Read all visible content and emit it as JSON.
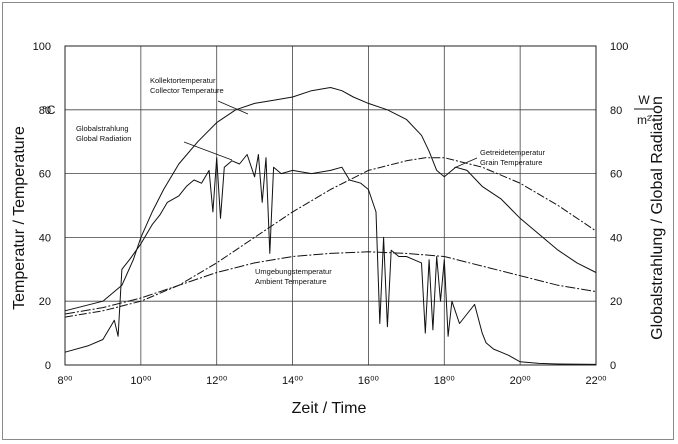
{
  "chart_data": {
    "type": "line",
    "xlabel": "Zeit / Time",
    "ylabel_left": "Temperatur / Temperature",
    "ylabel_right": "Globalstrahlung / Global Radiation",
    "unit_left": "°C",
    "unit_right_top": "W",
    "unit_right_bottom": "m²",
    "xlim": [
      8,
      22
    ],
    "ylim": [
      0,
      100
    ],
    "ylim_right": [
      0,
      100
    ],
    "grid": true,
    "x_ticks": [
      {
        "value": 8,
        "label": "8⁰⁰"
      },
      {
        "value": 10,
        "label": "10⁰⁰"
      },
      {
        "value": 12,
        "label": "12⁰⁰"
      },
      {
        "value": 14,
        "label": "14⁰⁰"
      },
      {
        "value": 16,
        "label": "16⁰⁰"
      },
      {
        "value": 18,
        "label": "18⁰⁰"
      },
      {
        "value": 20,
        "label": "20⁰⁰"
      },
      {
        "value": 22,
        "label": "22⁰⁰"
      }
    ],
    "y_ticks": [
      0,
      20,
      40,
      60,
      80,
      100
    ],
    "y_ticks_right": [
      0,
      20,
      40,
      60,
      80,
      100
    ],
    "series": [
      {
        "name": "Kollektortemperatur Collector Temperature",
        "label_lines": [
          "Kollektortemperatur",
          "Collector Temperature"
        ],
        "points": [
          [
            8,
            17
          ],
          [
            9,
            20
          ],
          [
            9.5,
            25
          ],
          [
            9.8,
            33
          ],
          [
            10,
            40
          ],
          [
            10.3,
            48
          ],
          [
            10.6,
            55
          ],
          [
            11,
            63
          ],
          [
            11.5,
            70
          ],
          [
            12,
            76
          ],
          [
            12.5,
            80
          ],
          [
            13,
            82
          ],
          [
            13.5,
            83
          ],
          [
            14,
            84
          ],
          [
            14.5,
            86
          ],
          [
            15,
            87
          ],
          [
            15.3,
            86
          ],
          [
            15.6,
            84
          ],
          [
            16,
            82
          ],
          [
            16.5,
            80
          ],
          [
            17,
            77
          ],
          [
            17.4,
            72
          ],
          [
            17.6,
            67
          ],
          [
            17.8,
            61
          ],
          [
            18,
            59
          ],
          [
            18.3,
            62
          ],
          [
            18.6,
            61
          ],
          [
            19,
            56
          ],
          [
            19.5,
            52
          ],
          [
            20,
            46
          ],
          [
            20.5,
            41
          ],
          [
            21,
            36
          ],
          [
            21.5,
            32
          ],
          [
            22,
            29
          ]
        ]
      },
      {
        "name": "Globalstrahlung Global Radiation",
        "label_lines": [
          "Globalstrahlung",
          "Global Radiation"
        ],
        "points": [
          [
            8,
            4
          ],
          [
            8.6,
            6
          ],
          [
            9,
            8
          ],
          [
            9.2,
            12
          ],
          [
            9.3,
            14
          ],
          [
            9.4,
            9
          ],
          [
            9.5,
            30
          ],
          [
            9.7,
            33
          ],
          [
            10,
            38
          ],
          [
            10.3,
            44
          ],
          [
            10.5,
            47
          ],
          [
            10.7,
            51
          ],
          [
            11,
            53
          ],
          [
            11.2,
            56
          ],
          [
            11.4,
            58
          ],
          [
            11.6,
            57
          ],
          [
            11.8,
            61
          ],
          [
            11.9,
            48
          ],
          [
            12,
            65
          ],
          [
            12.1,
            46
          ],
          [
            12.2,
            62
          ],
          [
            12.4,
            64
          ],
          [
            12.6,
            63
          ],
          [
            12.8,
            66
          ],
          [
            13,
            59
          ],
          [
            13.1,
            66
          ],
          [
            13.2,
            51
          ],
          [
            13.3,
            65
          ],
          [
            13.4,
            35
          ],
          [
            13.5,
            62
          ],
          [
            13.7,
            60
          ],
          [
            14,
            61
          ],
          [
            14.5,
            60
          ],
          [
            15,
            61
          ],
          [
            15.3,
            62
          ],
          [
            15.5,
            58
          ],
          [
            15.8,
            57
          ],
          [
            16,
            55
          ],
          [
            16.2,
            48
          ],
          [
            16.3,
            13
          ],
          [
            16.4,
            40
          ],
          [
            16.5,
            12
          ],
          [
            16.6,
            36
          ],
          [
            16.8,
            34
          ],
          [
            17,
            34
          ],
          [
            17.2,
            33
          ],
          [
            17.4,
            32
          ],
          [
            17.5,
            10
          ],
          [
            17.6,
            33
          ],
          [
            17.7,
            11
          ],
          [
            17.8,
            34
          ],
          [
            17.9,
            20
          ],
          [
            18,
            33
          ],
          [
            18.1,
            9
          ],
          [
            18.2,
            20
          ],
          [
            18.4,
            13
          ],
          [
            18.6,
            16
          ],
          [
            18.8,
            19
          ],
          [
            19,
            10
          ],
          [
            19.1,
            7
          ],
          [
            19.3,
            5
          ],
          [
            19.5,
            4
          ],
          [
            19.7,
            3
          ],
          [
            20,
            1
          ],
          [
            20.5,
            0.5
          ],
          [
            21,
            0.3
          ],
          [
            22,
            0.2
          ]
        ]
      },
      {
        "name": "Getreidetemperatur Grain Temperature",
        "label_lines": [
          "Getreidetemperatur",
          "Grain Temperature"
        ],
        "points": [
          [
            8,
            15
          ],
          [
            9,
            17
          ],
          [
            10,
            20
          ],
          [
            11,
            25
          ],
          [
            12,
            32
          ],
          [
            13,
            40
          ],
          [
            14,
            48
          ],
          [
            15,
            55
          ],
          [
            16,
            61
          ],
          [
            17,
            64
          ],
          [
            17.5,
            65
          ],
          [
            18,
            65
          ],
          [
            19,
            62
          ],
          [
            20,
            57
          ],
          [
            21,
            50
          ],
          [
            22,
            42
          ]
        ]
      },
      {
        "name": "Umgebungstemperatur Ambient Temperature",
        "label_lines": [
          "Umgebungstemperatur",
          "Ambient Temperature"
        ],
        "points": [
          [
            8,
            16
          ],
          [
            9,
            18
          ],
          [
            10,
            21
          ],
          [
            11,
            25
          ],
          [
            12,
            29
          ],
          [
            13,
            32
          ],
          [
            14,
            34
          ],
          [
            15,
            35
          ],
          [
            16,
            35.5
          ],
          [
            17,
            35
          ],
          [
            18,
            34
          ],
          [
            19,
            31
          ],
          [
            20,
            28
          ],
          [
            21,
            25
          ],
          [
            22,
            23
          ]
        ]
      }
    ]
  }
}
